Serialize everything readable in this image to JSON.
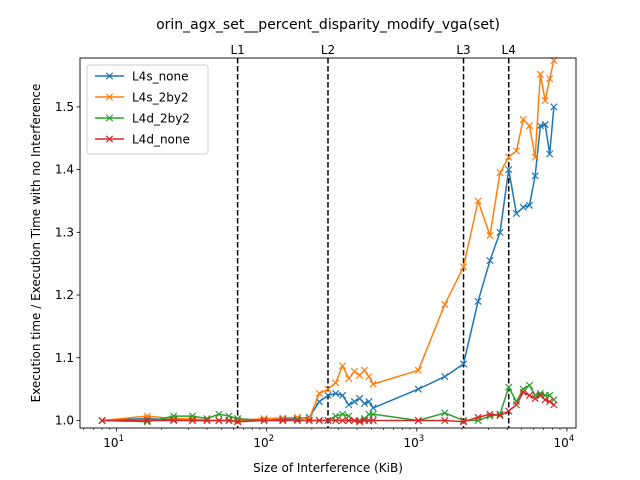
{
  "chart_data": {
    "type": "line",
    "title": "orin_agx_set__percent_disparity_modify_vga(set)",
    "xlabel": "Size of Interference (KiB)",
    "ylabel": "Execution time / Execution Time with no Interference",
    "xscale": "log",
    "xlim": [
      5.7,
      11500
    ],
    "ylim": [
      0.988,
      1.578
    ],
    "grid": false,
    "legend_position": "top-left",
    "x_ticks": [
      {
        "value": 10,
        "label": "10",
        "exp": "1"
      },
      {
        "value": 100,
        "label": "10",
        "exp": "2"
      },
      {
        "value": 1000,
        "label": "10",
        "exp": "3"
      },
      {
        "value": 10000,
        "label": "10",
        "exp": "4"
      }
    ],
    "y_ticks": [
      "1.0",
      "1.1",
      "1.2",
      "1.3",
      "1.4",
      "1.5"
    ],
    "vlines": [
      {
        "label": "L1",
        "x": 64
      },
      {
        "label": "L2",
        "x": 256
      },
      {
        "label": "L3",
        "x": 2048
      },
      {
        "label": "L4",
        "x": 4096
      }
    ],
    "series": [
      {
        "name": "L4s_none",
        "color": "#1f77b4",
        "x": [
          8,
          16,
          24,
          32,
          40,
          48,
          56,
          64,
          96,
          128,
          160,
          192,
          224,
          256,
          288,
          320,
          352,
          384,
          416,
          448,
          480,
          512,
          1024,
          1536,
          2048,
          2560,
          3072,
          3584,
          4096,
          4608,
          5120,
          5632,
          6144,
          6656,
          7168,
          7680,
          8192
        ],
        "y": [
          1.0,
          1.003,
          1.001,
          1.0,
          1.0,
          1.0,
          1.0,
          1.0,
          1.0,
          1.002,
          1.003,
          1.005,
          1.03,
          1.04,
          1.043,
          1.04,
          1.025,
          1.03,
          1.035,
          1.027,
          1.03,
          1.02,
          1.05,
          1.07,
          1.09,
          1.19,
          1.255,
          1.3,
          1.4,
          1.33,
          1.34,
          1.343,
          1.39,
          1.47,
          1.472,
          1.425,
          1.5
        ]
      },
      {
        "name": "L4s_2by2",
        "color": "#ff7f0e",
        "x": [
          8,
          16,
          24,
          32,
          40,
          48,
          56,
          64,
          96,
          128,
          160,
          192,
          224,
          256,
          288,
          320,
          352,
          384,
          416,
          448,
          480,
          512,
          1024,
          1536,
          2048,
          2560,
          3072,
          3584,
          4096,
          4608,
          5120,
          5632,
          6144,
          6656,
          7168,
          7680,
          8192
        ],
        "y": [
          1.0,
          1.007,
          1.003,
          1.003,
          1.0,
          1.0,
          1.0,
          1.0,
          1.003,
          1.004,
          1.005,
          1.003,
          1.043,
          1.05,
          1.06,
          1.087,
          1.067,
          1.078,
          1.072,
          1.08,
          1.07,
          1.058,
          1.08,
          1.185,
          1.245,
          1.35,
          1.295,
          1.395,
          1.42,
          1.43,
          1.48,
          1.47,
          1.42,
          1.552,
          1.51,
          1.545,
          1.574
        ]
      },
      {
        "name": "L4d_2by2",
        "color": "#2ca02c",
        "x": [
          8,
          16,
          24,
          32,
          40,
          48,
          56,
          64,
          96,
          128,
          160,
          192,
          224,
          256,
          288,
          320,
          352,
          384,
          416,
          448,
          480,
          512,
          1024,
          1536,
          2048,
          2560,
          3072,
          3584,
          4096,
          4608,
          5120,
          5632,
          6144,
          6656,
          7168,
          7680,
          8192
        ],
        "y": [
          1.0,
          0.998,
          1.007,
          1.007,
          1.003,
          1.01,
          1.007,
          1.003,
          1.0,
          1.0,
          1.001,
          1.0,
          1.0,
          1.0,
          1.007,
          1.01,
          1.007,
          1.0,
          1.0,
          1.003,
          1.01,
          1.01,
          1.0,
          1.012,
          1.0,
          1.0,
          1.007,
          1.01,
          1.053,
          1.03,
          1.05,
          1.056,
          1.04,
          1.043,
          1.04,
          1.04,
          1.033
        ]
      },
      {
        "name": "L4d_none",
        "color": "#d62728",
        "x": [
          8,
          16,
          24,
          32,
          40,
          48,
          56,
          64,
          96,
          128,
          160,
          192,
          224,
          256,
          288,
          320,
          352,
          384,
          416,
          448,
          480,
          512,
          1024,
          1536,
          2048,
          2560,
          3072,
          3584,
          4096,
          4608,
          5120,
          5632,
          6144,
          6656,
          7168,
          7680,
          8192
        ],
        "y": [
          1.0,
          1.0,
          1.0,
          1.0,
          1.0,
          1.0,
          1.0,
          0.998,
          1.0,
          1.0,
          1.0,
          1.0,
          1.0,
          1.0,
          1.0,
          1.0,
          1.0,
          1.0,
          0.998,
          1.0,
          1.0,
          1.0,
          1.0,
          1.0,
          0.998,
          1.005,
          1.01,
          1.008,
          1.015,
          1.025,
          1.045,
          1.04,
          1.035,
          1.04,
          1.033,
          1.03,
          1.025
        ]
      }
    ]
  }
}
